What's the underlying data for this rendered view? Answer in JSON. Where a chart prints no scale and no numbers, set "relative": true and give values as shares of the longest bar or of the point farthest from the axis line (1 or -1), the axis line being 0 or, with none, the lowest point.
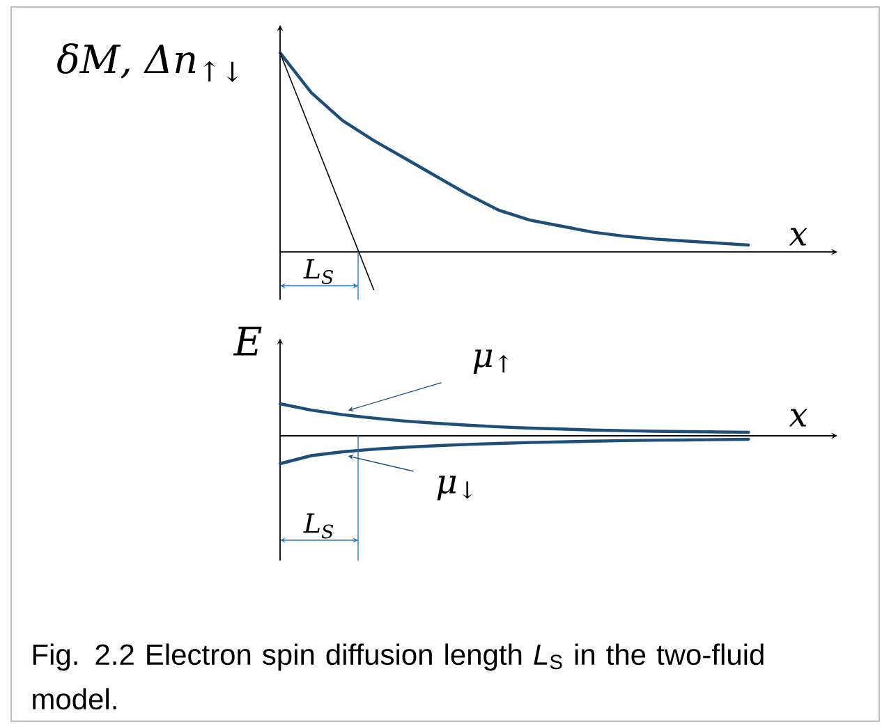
{
  "chart_data": [
    {
      "type": "line",
      "relative": true,
      "ylabel": "δM, Δn$_{↑↓}$",
      "xlabel": "x",
      "categories": [
        null,
        null,
        null,
        null,
        null,
        null,
        null,
        null,
        null,
        null,
        null,
        null,
        null,
        null,
        null,
        null
      ],
      "series": [
        {
          "color": "#1f4e79",
          "values": [
            1,
            0.8,
            0.66,
            0.56,
            0.47,
            0.38,
            0.29,
            0.21,
            0.16,
            0.13,
            0.1,
            0.08,
            0.065,
            0.055,
            0.045,
            0.035
          ]
        },
        {
          "color": "#000000",
          "values": [
            1,
            null,
            null,
            -0.19,
            null,
            null,
            null,
            null,
            null,
            null,
            null,
            null,
            null,
            null,
            null,
            null
          ]
        }
      ],
      "annotations": [
        "L$_{S}$"
      ]
    },
    {
      "type": "line",
      "relative": true,
      "ylabel": "E",
      "xlabel": "x",
      "categories": [
        null,
        null,
        null,
        null,
        null,
        null,
        null,
        null,
        null,
        null,
        null,
        null,
        null,
        null,
        null,
        null
      ],
      "series": [
        {
          "name": "μ$_{↑}$",
          "color": "#1f4e79",
          "values": [
            1,
            0.8,
            0.66,
            0.55,
            0.46,
            0.39,
            0.33,
            0.28,
            0.24,
            0.21,
            0.18,
            0.16,
            0.14,
            0.13,
            0.12,
            0.11
          ]
        },
        {
          "name": "μ$_{↓}$",
          "color": "#1f4e79",
          "values": [
            -0.87,
            -0.62,
            -0.5,
            -0.42,
            -0.36,
            -0.31,
            -0.27,
            -0.24,
            -0.21,
            -0.19,
            -0.17,
            -0.15,
            -0.14,
            -0.13,
            -0.12,
            -0.11
          ]
        }
      ],
      "annotations": [
        "L$_{S}$",
        "Fig. 2.2 Electron spin diffusion length *L*$_{S}$ in the two-fluid model."
      ]
    }
  ]
}
